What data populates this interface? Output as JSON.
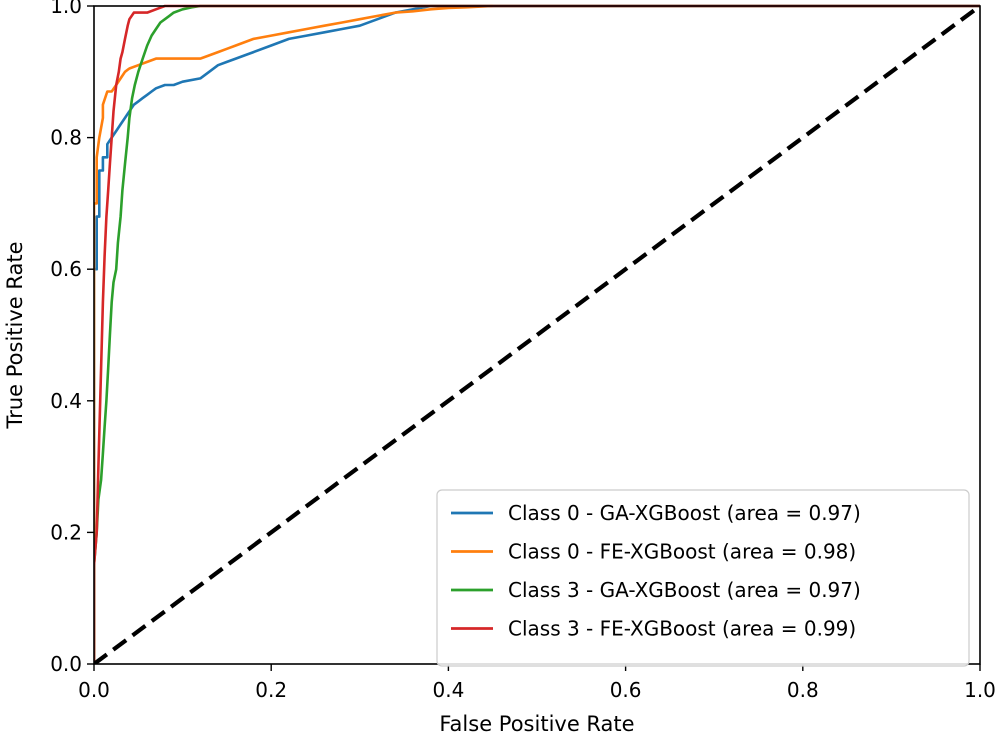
{
  "chart_data": {
    "type": "line",
    "title": "",
    "xlabel": "False Positive Rate",
    "ylabel": "True Positive Rate",
    "xlim": [
      0.0,
      1.0
    ],
    "ylim": [
      0.0,
      1.0
    ],
    "xticks": [
      "0.0",
      "0.2",
      "0.4",
      "0.6",
      "0.8",
      "1.0"
    ],
    "yticks": [
      "0.0",
      "0.2",
      "0.4",
      "0.6",
      "0.8",
      "1.0"
    ],
    "grid": false,
    "legend_position": "lower-right",
    "series": [
      {
        "name": "Class 0 - GA-XGBoost (area = 0.97)",
        "color": "#1f77b4",
        "x": [
          0.0,
          0.0,
          0.003,
          0.003,
          0.006,
          0.006,
          0.01,
          0.01,
          0.015,
          0.015,
          0.02,
          0.025,
          0.03,
          0.035,
          0.04,
          0.045,
          0.05,
          0.055,
          0.06,
          0.065,
          0.07,
          0.08,
          0.09,
          0.1,
          0.12,
          0.13,
          0.14,
          0.15,
          0.16,
          0.17,
          0.18,
          0.2,
          0.22,
          0.24,
          0.26,
          0.28,
          0.3,
          0.32,
          0.34,
          0.36,
          0.38,
          0.4,
          0.45,
          1.0
        ],
        "y": [
          0.0,
          0.6,
          0.6,
          0.68,
          0.68,
          0.75,
          0.75,
          0.77,
          0.77,
          0.79,
          0.8,
          0.81,
          0.82,
          0.83,
          0.84,
          0.85,
          0.855,
          0.86,
          0.865,
          0.87,
          0.875,
          0.88,
          0.88,
          0.885,
          0.89,
          0.9,
          0.91,
          0.915,
          0.92,
          0.925,
          0.93,
          0.94,
          0.95,
          0.955,
          0.96,
          0.965,
          0.97,
          0.98,
          0.99,
          0.995,
          1.0,
          1.0,
          1.0,
          1.0
        ]
      },
      {
        "name": "Class 0 - FE-XGBoost (area = 0.98)",
        "color": "#ff7f0e",
        "x": [
          0.0,
          0.0,
          0.003,
          0.003,
          0.006,
          0.01,
          0.01,
          0.015,
          0.02,
          0.025,
          0.03,
          0.035,
          0.04,
          0.05,
          0.06,
          0.07,
          0.08,
          0.1,
          0.12,
          0.13,
          0.14,
          0.15,
          0.16,
          0.18,
          0.2,
          0.22,
          0.24,
          0.26,
          0.28,
          0.3,
          0.32,
          0.34,
          0.36,
          0.38,
          0.4,
          0.42,
          0.45
        ],
        "y": [
          0.0,
          0.7,
          0.7,
          0.77,
          0.8,
          0.83,
          0.85,
          0.87,
          0.87,
          0.88,
          0.89,
          0.9,
          0.905,
          0.91,
          0.915,
          0.92,
          0.92,
          0.92,
          0.92,
          0.925,
          0.93,
          0.935,
          0.94,
          0.95,
          0.955,
          0.96,
          0.965,
          0.97,
          0.975,
          0.98,
          0.985,
          0.99,
          0.992,
          0.995,
          0.997,
          0.998,
          1.0
        ]
      },
      {
        "name": "Class 3 - GA-XGBoost (area = 0.97)",
        "color": "#2ca02c",
        "x": [
          0.0,
          0.0,
          0.003,
          0.005,
          0.008,
          0.01,
          0.012,
          0.014,
          0.016,
          0.018,
          0.02,
          0.022,
          0.025,
          0.027,
          0.03,
          0.032,
          0.035,
          0.038,
          0.04,
          0.043,
          0.046,
          0.05,
          0.055,
          0.06,
          0.065,
          0.07,
          0.075,
          0.08,
          0.085,
          0.09,
          0.1,
          0.11,
          0.12,
          1.0
        ],
        "y": [
          0.0,
          0.15,
          0.2,
          0.25,
          0.28,
          0.32,
          0.36,
          0.4,
          0.45,
          0.5,
          0.55,
          0.58,
          0.6,
          0.64,
          0.68,
          0.72,
          0.76,
          0.8,
          0.83,
          0.86,
          0.88,
          0.9,
          0.92,
          0.94,
          0.955,
          0.965,
          0.975,
          0.98,
          0.985,
          0.99,
          0.995,
          0.998,
          1.0,
          1.0
        ]
      },
      {
        "name": "Class 3 - FE-XGBoost (area = 0.99)",
        "color": "#d62728",
        "x": [
          0.0,
          0.0,
          0.003,
          0.005,
          0.008,
          0.01,
          0.012,
          0.014,
          0.016,
          0.018,
          0.02,
          0.022,
          0.025,
          0.028,
          0.03,
          0.032,
          0.035,
          0.038,
          0.04,
          0.045,
          0.05,
          0.06,
          0.07,
          0.08,
          0.09,
          0.1,
          0.12,
          1.0
        ],
        "y": [
          0.0,
          0.15,
          0.2,
          0.3,
          0.45,
          0.55,
          0.62,
          0.68,
          0.72,
          0.76,
          0.8,
          0.84,
          0.88,
          0.9,
          0.92,
          0.93,
          0.95,
          0.97,
          0.98,
          0.99,
          0.99,
          0.99,
          0.995,
          1.0,
          1.0,
          1.0,
          1.0,
          1.0
        ]
      },
      {
        "name": "chance",
        "color": "#000000",
        "dashed": true,
        "show_in_legend": false,
        "x": [
          0.0,
          1.0
        ],
        "y": [
          0.0,
          1.0
        ]
      }
    ]
  }
}
